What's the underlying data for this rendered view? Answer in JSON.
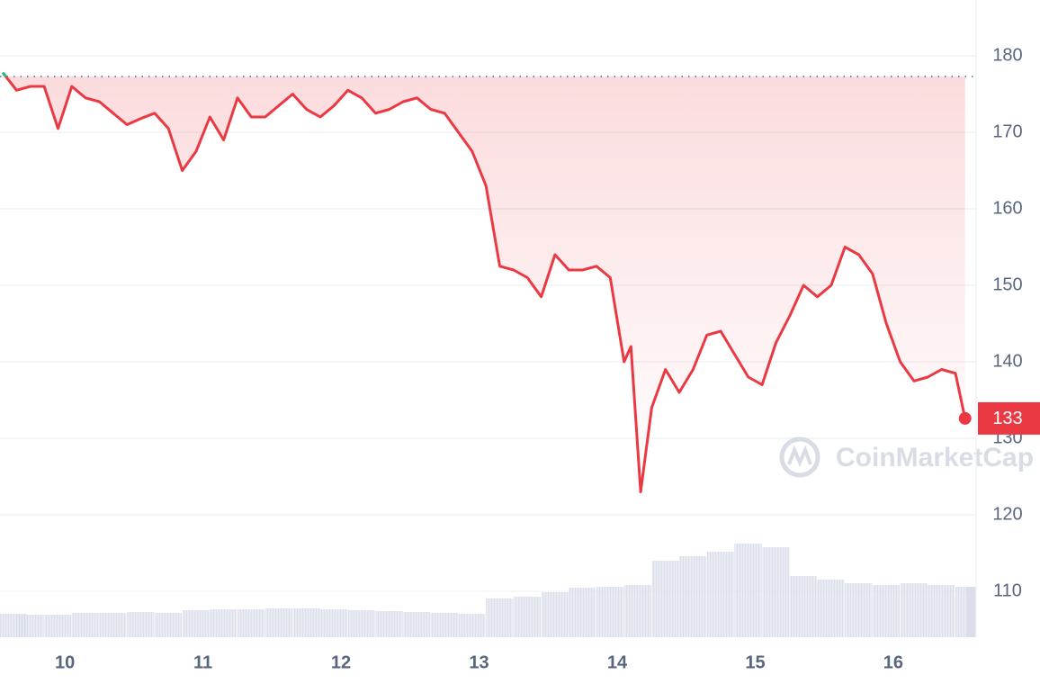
{
  "chart_data": {
    "type": "line",
    "series": [
      {
        "color": "#ea3943",
        "color_above_reference": "#16c784",
        "x": [
          9.55,
          9.65,
          9.75,
          9.85,
          9.95,
          10.05,
          10.15,
          10.25,
          10.35,
          10.45,
          10.55,
          10.65,
          10.75,
          10.85,
          10.95,
          11.05,
          11.15,
          11.25,
          11.35,
          11.45,
          11.55,
          11.65,
          11.75,
          11.85,
          11.95,
          12.05,
          12.15,
          12.25,
          12.35,
          12.45,
          12.55,
          12.65,
          12.75,
          12.85,
          12.95,
          13.05,
          13.15,
          13.25,
          13.35,
          13.45,
          13.55,
          13.65,
          13.75,
          13.85,
          13.95,
          14.05,
          14.1,
          14.17,
          14.25,
          14.35,
          14.45,
          14.55,
          14.65,
          14.75,
          14.85,
          14.95,
          15.05,
          15.15,
          15.25,
          15.35,
          15.45,
          15.55,
          15.65,
          15.75,
          15.85,
          15.95,
          16.05,
          16.15,
          16.25,
          16.35,
          16.45,
          16.52
        ],
        "values": [
          177.8,
          175.5,
          176,
          176,
          170.5,
          176,
          174.5,
          174,
          172.5,
          171,
          171.8,
          172.5,
          170.5,
          165,
          167.5,
          172,
          169,
          174.5,
          172,
          172,
          173.5,
          175,
          173,
          172,
          173.5,
          175.5,
          174.5,
          172.5,
          173,
          174,
          174.5,
          173,
          172.5,
          170,
          167.5,
          163,
          152.5,
          152,
          151,
          148.5,
          154,
          152,
          152,
          152.5,
          151,
          140,
          142,
          123,
          134,
          139,
          136,
          139,
          143.5,
          144,
          141,
          138,
          137,
          142.5,
          146,
          150,
          148.5,
          150,
          155,
          154,
          151.5,
          145,
          140,
          137.5,
          138,
          139,
          138.5,
          132.6
        ]
      }
    ],
    "reference": 177.3,
    "current_label": "133",
    "volume": {
      "color": "#cfd6e4",
      "ylim": [
        0,
        120
      ],
      "x": [
        9.55,
        9.75,
        9.95,
        10.15,
        10.35,
        10.55,
        10.75,
        10.95,
        11.15,
        11.35,
        11.55,
        11.75,
        11.95,
        12.15,
        12.35,
        12.55,
        12.75,
        12.95,
        13.15,
        13.35,
        13.55,
        13.75,
        13.95,
        14.15,
        14.35,
        14.55,
        14.75,
        14.95,
        15.15,
        15.35,
        15.55,
        15.75,
        15.95,
        16.15,
        16.35,
        16.55
      ],
      "values": [
        26,
        25,
        25,
        27,
        27,
        28,
        27,
        30,
        31,
        31,
        32,
        32,
        31,
        30,
        29,
        28,
        27,
        26,
        43,
        45,
        50,
        55,
        56,
        58,
        85,
        90,
        95,
        104,
        100,
        68,
        64,
        60,
        58,
        60,
        58,
        56
      ]
    },
    "xlim": [
      9.53,
      16.6
    ],
    "xticks": [
      10,
      11,
      12,
      13,
      14,
      15,
      16
    ],
    "ylim": [
      104,
      187.3
    ],
    "yticks": [
      110,
      120,
      130,
      140,
      150,
      160,
      170,
      180
    ],
    "grid": true,
    "watermark": "CoinMarketCap"
  }
}
